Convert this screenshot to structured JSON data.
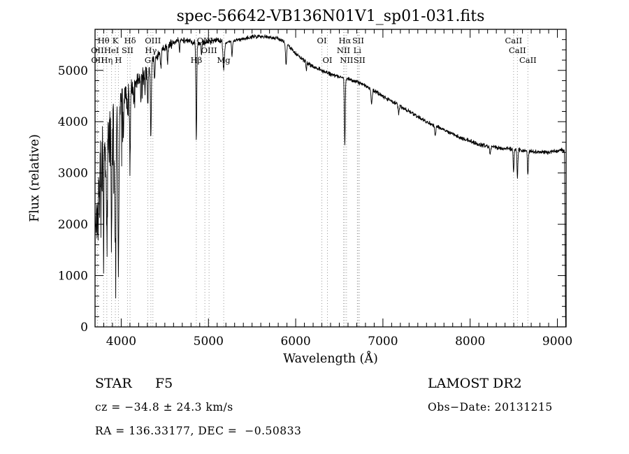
{
  "title": "spec-56642-VB136N01V1_sp01-031.fits",
  "chart_data": {
    "type": "line",
    "title": "spec-56642-VB136N01V1_sp01-031.fits",
    "xlabel": "Wavelength (Å)",
    "ylabel": "Flux (relative)",
    "xlim": [
      3700,
      9100
    ],
    "ylim": [
      0,
      5800
    ],
    "xticks": [
      4000,
      5000,
      6000,
      7000,
      8000,
      9000
    ],
    "yticks": [
      0,
      1000,
      2000,
      3000,
      4000,
      5000
    ],
    "x_minor_step": 100,
    "y_minor_step": 200,
    "grid": false,
    "legend": "none",
    "series_color": "#000000",
    "marker_line_color": "#999999",
    "line_markers": [
      {
        "wavelength": 3727,
        "label": "OII",
        "row": 2
      },
      {
        "wavelength": 3729,
        "label": "OII",
        "row": 3
      },
      {
        "wavelength": 3798,
        "label": "Hθ",
        "row": 1
      },
      {
        "wavelength": 3835,
        "label": "Hη",
        "row": 3
      },
      {
        "wavelength": 3889,
        "label": "HeI",
        "row": 2
      },
      {
        "wavelength": 3933,
        "label": "K",
        "row": 1
      },
      {
        "wavelength": 3968,
        "label": "H",
        "row": 3
      },
      {
        "wavelength": 4072,
        "label": "SII",
        "row": 2
      },
      {
        "wavelength": 4101,
        "label": "Hδ",
        "row": 1
      },
      {
        "wavelength": 4305,
        "label": "G",
        "row": 3
      },
      {
        "wavelength": 4340,
        "label": "Hγ",
        "row": 2
      },
      {
        "wavelength": 4363,
        "label": "OIII",
        "row": 1
      },
      {
        "wavelength": 4861,
        "label": "Hβ",
        "row": 3
      },
      {
        "wavelength": 4959,
        "label": "OIII",
        "row": 1
      },
      {
        "wavelength": 5007,
        "label": "OIII",
        "row": 2
      },
      {
        "wavelength": 5175,
        "label": "Mg",
        "row": 3
      },
      {
        "wavelength": 6300,
        "label": "OI",
        "row": 1
      },
      {
        "wavelength": 6364,
        "label": "OI",
        "row": 3
      },
      {
        "wavelength": 6548,
        "label": "NII",
        "row": 2
      },
      {
        "wavelength": 6563,
        "label": "Hα",
        "row": 1
      },
      {
        "wavelength": 6583,
        "label": "NII",
        "row": 3
      },
      {
        "wavelength": 6707,
        "label": "Li",
        "row": 2
      },
      {
        "wavelength": 6716,
        "label": "SII",
        "row": 1
      },
      {
        "wavelength": 6731,
        "label": "SII",
        "row": 3
      },
      {
        "wavelength": 8498,
        "label": "CaII",
        "row": 1
      },
      {
        "wavelength": 8542,
        "label": "CaII",
        "row": 2
      },
      {
        "wavelength": 8662,
        "label": "CaII",
        "row": 3
      }
    ],
    "continuum": [
      [
        3700,
        2100
      ],
      [
        3720,
        3000
      ],
      [
        3740,
        3600
      ],
      [
        3760,
        3900
      ],
      [
        3780,
        4050
      ],
      [
        3800,
        4100
      ],
      [
        3850,
        4250
      ],
      [
        3900,
        4350
      ],
      [
        3950,
        4400
      ],
      [
        4000,
        4500
      ],
      [
        4050,
        4600
      ],
      [
        4100,
        4700
      ],
      [
        4150,
        4750
      ],
      [
        4200,
        4850
      ],
      [
        4250,
        4950
      ],
      [
        4300,
        5050
      ],
      [
        4350,
        5150
      ],
      [
        4400,
        5250
      ],
      [
        4450,
        5350
      ],
      [
        4500,
        5420
      ],
      [
        4550,
        5480
      ],
      [
        4600,
        5540
      ],
      [
        4650,
        5580
      ],
      [
        4700,
        5600
      ],
      [
        4750,
        5580
      ],
      [
        4800,
        5560
      ],
      [
        4850,
        5540
      ],
      [
        4900,
        5520
      ],
      [
        4950,
        5540
      ],
      [
        5000,
        5560
      ],
      [
        5050,
        5580
      ],
      [
        5100,
        5600
      ],
      [
        5150,
        5580
      ],
      [
        5200,
        5540
      ],
      [
        5250,
        5560
      ],
      [
        5300,
        5580
      ],
      [
        5350,
        5600
      ],
      [
        5400,
        5620
      ],
      [
        5450,
        5640
      ],
      [
        5500,
        5650
      ],
      [
        5550,
        5660
      ],
      [
        5600,
        5670
      ],
      [
        5650,
        5660
      ],
      [
        5700,
        5650
      ],
      [
        5750,
        5640
      ],
      [
        5800,
        5620
      ],
      [
        5850,
        5570
      ],
      [
        5900,
        5500
      ],
      [
        5950,
        5420
      ],
      [
        6000,
        5330
      ],
      [
        6100,
        5180
      ],
      [
        6200,
        5080
      ],
      [
        6300,
        5000
      ],
      [
        6400,
        4930
      ],
      [
        6500,
        4880
      ],
      [
        6563,
        4850
      ],
      [
        6600,
        4830
      ],
      [
        6700,
        4780
      ],
      [
        6800,
        4700
      ],
      [
        6900,
        4600
      ],
      [
        7000,
        4500
      ],
      [
        7100,
        4400
      ],
      [
        7200,
        4300
      ],
      [
        7300,
        4200
      ],
      [
        7400,
        4100
      ],
      [
        7500,
        4000
      ],
      [
        7600,
        3920
      ],
      [
        7700,
        3840
      ],
      [
        7800,
        3760
      ],
      [
        7900,
        3680
      ],
      [
        8000,
        3620
      ],
      [
        8100,
        3560
      ],
      [
        8200,
        3520
      ],
      [
        8300,
        3500
      ],
      [
        8400,
        3480
      ],
      [
        8500,
        3460
      ],
      [
        8600,
        3440
      ],
      [
        8700,
        3420
      ],
      [
        8800,
        3410
      ],
      [
        8900,
        3400
      ],
      [
        8950,
        3420
      ],
      [
        9000,
        3430
      ],
      [
        9040,
        3460
      ],
      [
        9070,
        3440
      ],
      [
        9082,
        3400
      ],
      [
        9088,
        1500
      ],
      [
        9094,
        0
      ],
      [
        9100,
        0
      ]
    ],
    "absorption_lines": [
      [
        3712,
        700,
        5
      ],
      [
        3727,
        900,
        5
      ],
      [
        3737,
        800,
        4
      ],
      [
        3750,
        1300,
        5
      ],
      [
        3771,
        1500,
        5
      ],
      [
        3798,
        1900,
        6
      ],
      [
        3820,
        1000,
        5
      ],
      [
        3835,
        2300,
        6
      ],
      [
        3860,
        1000,
        4
      ],
      [
        3889,
        2500,
        6
      ],
      [
        3920,
        800,
        4
      ],
      [
        3933,
        2900,
        7
      ],
      [
        3968,
        3200,
        7
      ],
      [
        4026,
        800,
        4
      ],
      [
        4072,
        500,
        4
      ],
      [
        4101,
        1300,
        5
      ],
      [
        4144,
        400,
        4
      ],
      [
        4226,
        500,
        4
      ],
      [
        4271,
        400,
        4
      ],
      [
        4305,
        600,
        7
      ],
      [
        4340,
        1400,
        5
      ],
      [
        4383,
        450,
        4
      ],
      [
        4455,
        350,
        4
      ],
      [
        4531,
        300,
        4
      ],
      [
        4668,
        250,
        4
      ],
      [
        4861,
        1900,
        5
      ],
      [
        4920,
        250,
        4
      ],
      [
        5175,
        550,
        8
      ],
      [
        5270,
        300,
        5
      ],
      [
        5890,
        400,
        6
      ],
      [
        6122,
        150,
        4
      ],
      [
        6563,
        1300,
        5
      ],
      [
        6870,
        280,
        7
      ],
      [
        7180,
        150,
        6
      ],
      [
        7600,
        200,
        7
      ],
      [
        8230,
        150,
        6
      ],
      [
        8498,
        450,
        5
      ],
      [
        8542,
        520,
        5
      ],
      [
        8662,
        480,
        5
      ]
    ],
    "noise_seed": 7
  },
  "footer": {
    "object_type": "STAR",
    "subclass": "F5",
    "survey": "LAMOST DR2",
    "cz": "cz = −34.8 ± 24.3 km/s",
    "obs_date": "Obs−Date: 20131215",
    "ra_dec": "RA = 136.33177, DEC =  −0.50833"
  }
}
